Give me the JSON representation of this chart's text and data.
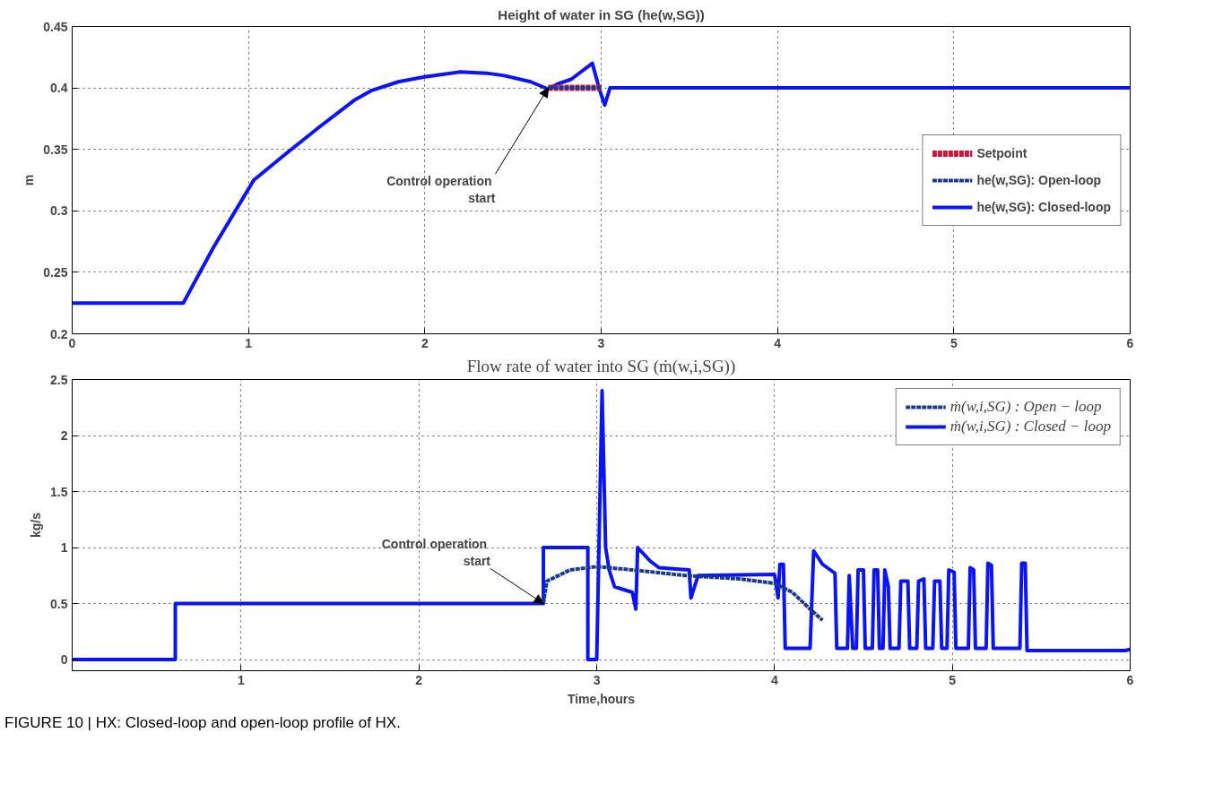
{
  "chart_data": [
    {
      "type": "line",
      "title": "Height of water in SG (he(w,SG))",
      "ylabel": "m",
      "xlim": [
        0,
        6
      ],
      "xticks": [
        0,
        1,
        2,
        3,
        4,
        5,
        6
      ],
      "ylim": [
        0.2,
        0.45
      ],
      "yticks": [
        0.2,
        0.25,
        0.3,
        0.35,
        0.4,
        0.45
      ],
      "grid": true,
      "legend": "right",
      "series": [
        {
          "name": "Setpoint",
          "color": "#d2143c",
          "line_style": "dashed",
          "x": [
            2.7,
            3.0
          ],
          "values": [
            0.4,
            0.4
          ]
        },
        {
          "name": "he(w,SG): Open-loop",
          "color": "#1a3a8c",
          "line_style": "dashed",
          "x": [
            2.7,
            3.0
          ],
          "values": [
            0.4,
            0.4
          ]
        },
        {
          "name": "he(w,SG): Closed-loop",
          "color": "#0a14f5",
          "line_style": "solid",
          "x": [
            0,
            0.63,
            0.8,
            1.03,
            1.2,
            1.4,
            1.6,
            1.7,
            1.85,
            2.0,
            2.2,
            2.35,
            2.45,
            2.6,
            2.7,
            2.75,
            2.83,
            2.95,
            2.99,
            3.02,
            3.05,
            3.5,
            4,
            5,
            6
          ],
          "values": [
            0.225,
            0.225,
            0.27,
            0.325,
            0.345,
            0.368,
            0.39,
            0.398,
            0.405,
            0.409,
            0.413,
            0.412,
            0.41,
            0.405,
            0.399,
            0.403,
            0.407,
            0.42,
            0.399,
            0.386,
            0.4,
            0.4,
            0.4,
            0.4,
            0.4
          ]
        }
      ],
      "annotations": [
        {
          "text": "Control  operation\nstart",
          "x": 2.7,
          "y": 0.4
        }
      ]
    },
    {
      "type": "line",
      "title": "Flow rate of water into SG (ṁ(w,i,SG))",
      "xlabel": "Time,hours",
      "ylabel": "kg/s",
      "xlim": [
        0.05,
        6
      ],
      "xticks": [
        1,
        2,
        3,
        4,
        5,
        6
      ],
      "ylim": [
        -0.1,
        2.5
      ],
      "yticks": [
        0,
        0.5,
        1,
        1.5,
        2,
        2.5
      ],
      "grid": true,
      "legend": "top right",
      "series": [
        {
          "name": "ṁ(w,i,SG) : Open − loop",
          "color": "#1a3a8c",
          "line_style": "dashed",
          "x": [
            2.7,
            2.72,
            2.85,
            3.0,
            3.2,
            3.5,
            3.8,
            4.0,
            4.1,
            4.2,
            4.27
          ],
          "values": [
            0.5,
            0.7,
            0.8,
            0.83,
            0.8,
            0.75,
            0.72,
            0.68,
            0.6,
            0.45,
            0.35
          ]
        },
        {
          "name": "ṁ(w,i,SG) : Closed − loop",
          "color": "#0a14f5",
          "line_style": "solid",
          "x": [
            0.05,
            0.63,
            0.63,
            2.7,
            2.7,
            2.95,
            2.95,
            3.0,
            3.03,
            3.05,
            3.07,
            3.1,
            3.2,
            3.22,
            3.23,
            3.3,
            3.35,
            3.52,
            3.53,
            3.57,
            4.0,
            4.02,
            4.03,
            4.05,
            4.06,
            4.2,
            4.22,
            4.27,
            4.34,
            4.35,
            4.41,
            4.42,
            4.44,
            4.46,
            4.47,
            4.5,
            4.51,
            4.55,
            4.56,
            4.58,
            4.59,
            4.61,
            4.62,
            4.64,
            4.65,
            4.7,
            4.71,
            4.75,
            4.76,
            4.8,
            4.81,
            4.84,
            4.85,
            4.89,
            4.9,
            4.93,
            4.94,
            4.97,
            4.98,
            5.01,
            5.02,
            5.09,
            5.1,
            5.12,
            5.13,
            5.19,
            5.2,
            5.22,
            5.23,
            5.38,
            5.39,
            5.41,
            5.42,
            5.97,
            6.0
          ],
          "values": [
            0,
            0,
            0.5,
            0.5,
            1.0,
            1.0,
            0,
            0,
            2.4,
            1.0,
            0.8,
            0.65,
            0.6,
            0.45,
            1.0,
            0.88,
            0.82,
            0.8,
            0.55,
            0.75,
            0.76,
            0.55,
            0.85,
            0.85,
            0.1,
            0.1,
            0.97,
            0.85,
            0.77,
            0.1,
            0.1,
            0.75,
            0.1,
            0.1,
            0.8,
            0.8,
            0.1,
            0.1,
            0.8,
            0.8,
            0.1,
            0.1,
            0.8,
            0.65,
            0.1,
            0.1,
            0.7,
            0.7,
            0.1,
            0.1,
            0.7,
            0.72,
            0.1,
            0.1,
            0.7,
            0.7,
            0.1,
            0.1,
            0.8,
            0.78,
            0.1,
            0.1,
            0.82,
            0.8,
            0.1,
            0.1,
            0.86,
            0.84,
            0.1,
            0.1,
            0.86,
            0.86,
            0.08,
            0.08,
            0.09
          ]
        }
      ],
      "annotations": [
        {
          "text": "Control  operation\nstart",
          "x": 2.7,
          "y": 0.5
        },
        "FIGURE 10 | HX: Closed-loop and open-loop profile of HX."
      ]
    }
  ]
}
